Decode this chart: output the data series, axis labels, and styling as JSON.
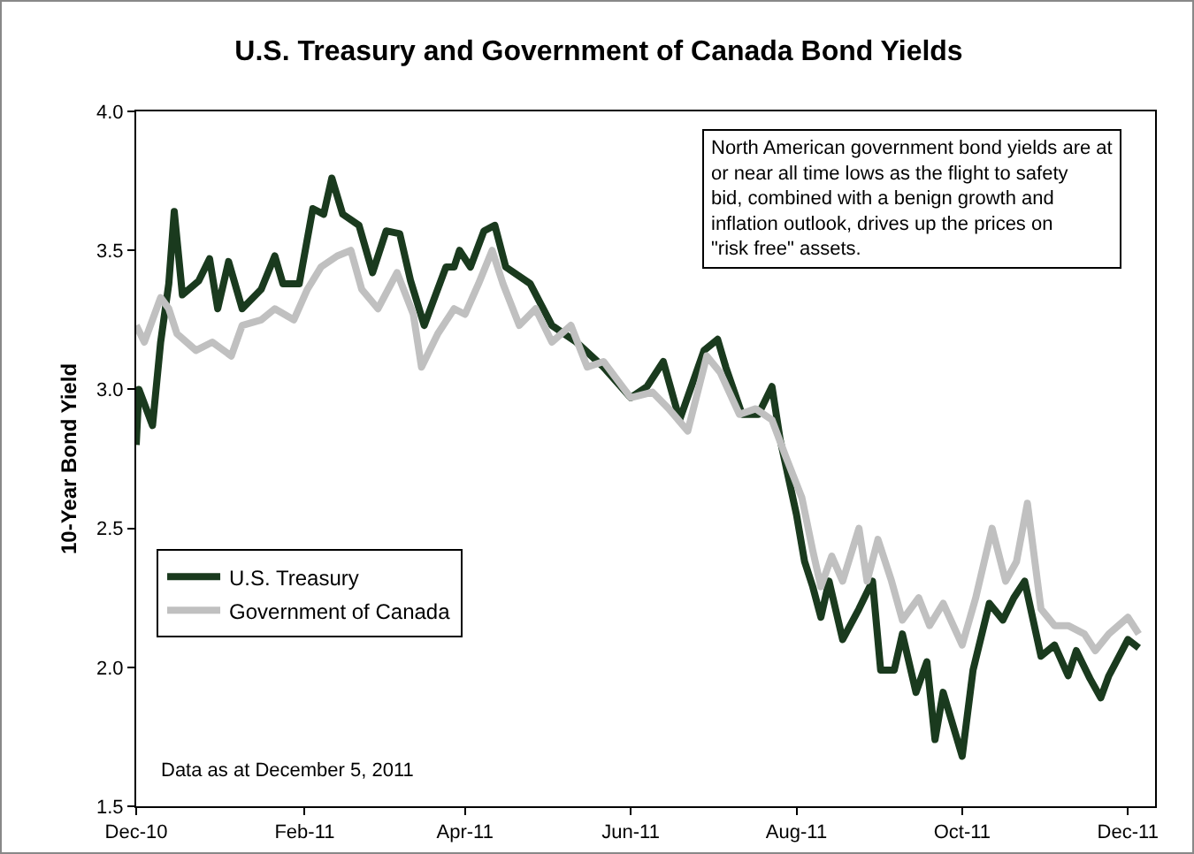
{
  "chart_data": {
    "type": "line",
    "title": "U.S. Treasury and Government of Canada Bond Yields",
    "ylabel": "10-Year Bond Yield",
    "annotations": [
      "North American government bond yields are at or near all time lows as the flight to safety bid, combined with a benign growth and inflation outlook, drives up the prices on \"risk free\" assets.",
      "Data as at December 5, 2011"
    ],
    "series": [
      {
        "name": "U.S. Treasury",
        "color": "#1a3a1e",
        "x": [
          "2010-12-01",
          "2010-12-02",
          "2010-12-07",
          "2010-12-10",
          "2010-12-13",
          "2010-12-15",
          "2010-12-18",
          "2010-12-24",
          "2010-12-28",
          "2010-12-31",
          "2011-01-04",
          "2011-01-09",
          "2011-01-16",
          "2011-01-21",
          "2011-01-24",
          "2011-01-30",
          "2011-02-04",
          "2011-02-08",
          "2011-02-11",
          "2011-02-15",
          "2011-02-21",
          "2011-02-26",
          "2011-03-03",
          "2011-03-08",
          "2011-03-12",
          "2011-03-17",
          "2011-03-25",
          "2011-03-28",
          "2011-03-30",
          "2011-04-03",
          "2011-04-08",
          "2011-04-12",
          "2011-04-16",
          "2011-04-25",
          "2011-05-03",
          "2011-05-12",
          "2011-05-22",
          "2011-06-01",
          "2011-06-07",
          "2011-06-13",
          "2011-06-19",
          "2011-06-28",
          "2011-07-03",
          "2011-07-06",
          "2011-07-12",
          "2011-07-18",
          "2011-07-23",
          "2011-07-26",
          "2011-08-01",
          "2011-08-04",
          "2011-08-07",
          "2011-08-10",
          "2011-08-13",
          "2011-08-18",
          "2011-08-24",
          "2011-08-29",
          "2011-09-01",
          "2011-09-06",
          "2011-09-09",
          "2011-09-14",
          "2011-09-18",
          "2011-09-21",
          "2011-09-24",
          "2011-10-01",
          "2011-10-05",
          "2011-10-11",
          "2011-10-16",
          "2011-10-20",
          "2011-10-24",
          "2011-10-30",
          "2011-11-04",
          "2011-11-09",
          "2011-11-12",
          "2011-11-17",
          "2011-11-21",
          "2011-11-24",
          "2011-12-01",
          "2011-12-05"
        ],
        "values": [
          2.8,
          3.0,
          2.87,
          3.17,
          3.38,
          3.64,
          3.34,
          3.39,
          3.47,
          3.29,
          3.46,
          3.29,
          3.36,
          3.48,
          3.38,
          3.38,
          3.65,
          3.63,
          3.76,
          3.63,
          3.59,
          3.42,
          3.57,
          3.56,
          3.39,
          3.23,
          3.44,
          3.44,
          3.5,
          3.44,
          3.57,
          3.59,
          3.44,
          3.38,
          3.23,
          3.17,
          3.08,
          2.97,
          3.01,
          3.1,
          2.89,
          3.14,
          3.18,
          3.08,
          2.91,
          2.91,
          3.01,
          2.82,
          2.55,
          2.38,
          2.29,
          2.18,
          2.31,
          2.1,
          2.21,
          2.31,
          1.99,
          1.99,
          2.12,
          1.91,
          2.02,
          1.74,
          1.91,
          1.68,
          1.99,
          2.23,
          2.17,
          2.25,
          2.31,
          2.04,
          2.08,
          1.97,
          2.06,
          1.96,
          1.89,
          1.97,
          2.1,
          2.07
        ]
      },
      {
        "name": "Government of Canada",
        "color": "#c0c0c0",
        "x": [
          "2010-12-01",
          "2010-12-04",
          "2010-12-10",
          "2010-12-13",
          "2010-12-16",
          "2010-12-23",
          "2010-12-29",
          "2011-01-05",
          "2011-01-09",
          "2011-01-16",
          "2011-01-21",
          "2011-01-28",
          "2011-02-02",
          "2011-02-07",
          "2011-02-13",
          "2011-02-18",
          "2011-02-22",
          "2011-02-28",
          "2011-03-07",
          "2011-03-13",
          "2011-03-16",
          "2011-03-22",
          "2011-03-28",
          "2011-04-01",
          "2011-04-06",
          "2011-04-11",
          "2011-04-15",
          "2011-04-21",
          "2011-04-27",
          "2011-05-03",
          "2011-05-10",
          "2011-05-16",
          "2011-05-22",
          "2011-06-01",
          "2011-06-09",
          "2011-06-15",
          "2011-06-22",
          "2011-06-29",
          "2011-07-04",
          "2011-07-11",
          "2011-07-17",
          "2011-07-23",
          "2011-07-28",
          "2011-08-03",
          "2011-08-07",
          "2011-08-10",
          "2011-08-14",
          "2011-08-18",
          "2011-08-24",
          "2011-08-27",
          "2011-08-31",
          "2011-09-05",
          "2011-09-09",
          "2011-09-15",
          "2011-09-19",
          "2011-09-24",
          "2011-10-01",
          "2011-10-06",
          "2011-10-12",
          "2011-10-17",
          "2011-10-21",
          "2011-10-25",
          "2011-10-30",
          "2011-11-04",
          "2011-11-09",
          "2011-11-15",
          "2011-11-19",
          "2011-11-24",
          "2011-12-01",
          "2011-12-05"
        ],
        "values": [
          3.23,
          3.17,
          3.33,
          3.29,
          3.2,
          3.14,
          3.17,
          3.12,
          3.23,
          3.25,
          3.29,
          3.25,
          3.36,
          3.44,
          3.48,
          3.5,
          3.36,
          3.29,
          3.42,
          3.27,
          3.08,
          3.2,
          3.29,
          3.27,
          3.38,
          3.5,
          3.38,
          3.23,
          3.29,
          3.17,
          3.23,
          3.08,
          3.1,
          2.97,
          2.99,
          2.93,
          2.85,
          3.12,
          3.06,
          2.91,
          2.93,
          2.89,
          2.76,
          2.61,
          2.42,
          2.29,
          2.4,
          2.31,
          2.5,
          2.31,
          2.46,
          2.31,
          2.17,
          2.25,
          2.15,
          2.23,
          2.08,
          2.25,
          2.5,
          2.31,
          2.38,
          2.59,
          2.21,
          2.15,
          2.15,
          2.12,
          2.06,
          2.12,
          2.18,
          2.12
        ]
      }
    ],
    "xlim": [
      "2010-12-01",
      "2011-12-11"
    ],
    "xticks": [
      {
        "value": "2010-12-01",
        "label": "Dec-10"
      },
      {
        "value": "2011-02-01",
        "label": "Feb-11"
      },
      {
        "value": "2011-04-01",
        "label": "Apr-11"
      },
      {
        "value": "2011-06-01",
        "label": "Jun-11"
      },
      {
        "value": "2011-08-01",
        "label": "Aug-11"
      },
      {
        "value": "2011-10-01",
        "label": "Oct-11"
      },
      {
        "value": "2011-12-01",
        "label": "Dec-11"
      }
    ],
    "ylim": [
      1.5,
      4.0
    ],
    "yticks": [
      {
        "value": 1.5,
        "label": "1.5"
      },
      {
        "value": 2.0,
        "label": "2.0"
      },
      {
        "value": 2.5,
        "label": "2.5"
      },
      {
        "value": 3.0,
        "label": "3.0"
      },
      {
        "value": 3.5,
        "label": "3.5"
      },
      {
        "value": 4.0,
        "label": "4.0"
      }
    ],
    "grid": false,
    "legend": "bottom left",
    "marker": "none",
    "line_style": "solid"
  }
}
